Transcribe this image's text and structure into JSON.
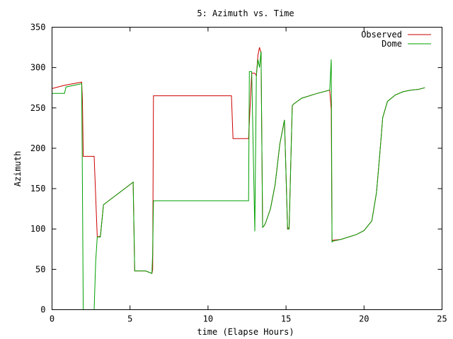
{
  "chart_data": {
    "type": "line",
    "title": "5: Azimuth vs. Time",
    "xlabel": "time (Elapse Hours)",
    "ylabel": "Azimuth",
    "xlim": [
      0,
      25
    ],
    "ylim": [
      0,
      350
    ],
    "xticks": [
      0,
      5,
      10,
      15,
      20,
      25
    ],
    "yticks": [
      0,
      50,
      100,
      150,
      200,
      250,
      300,
      350
    ],
    "grid": false,
    "legend_position": "top-right",
    "series": [
      {
        "name": "Observed",
        "color": "#cc0000",
        "x": [
          0,
          0.8,
          1.9,
          1.95,
          2.0,
          2.7,
          2.8,
          2.9,
          3.1,
          3.3,
          3.5,
          5.0,
          5.2,
          5.3,
          6.0,
          6.4,
          6.45,
          6.5,
          11.5,
          11.6,
          12.6,
          12.65,
          12.8,
          13.0,
          13.1,
          13.2,
          13.3,
          13.4,
          13.5,
          13.6,
          13.7,
          14.0,
          14.3,
          14.6,
          14.9,
          15.1,
          15.2,
          15.4,
          15.5,
          16.0,
          17.0,
          17.8,
          17.9,
          17.95,
          18.0,
          18.5,
          19.0,
          19.5,
          20.0,
          20.5,
          20.8,
          21.0,
          21.2,
          21.5,
          22.0,
          22.5,
          23.0,
          23.5,
          23.9
        ],
        "y": [
          274,
          278,
          282,
          258,
          190,
          190,
          140,
          90,
          91,
          130,
          133,
          155,
          158,
          48,
          48,
          45,
          50,
          265,
          265,
          212,
          212,
          232,
          293,
          293,
          290,
          315,
          325,
          318,
          102,
          104,
          108,
          125,
          155,
          205,
          235,
          100,
          102,
          253,
          255,
          262,
          268,
          272,
          248,
          84,
          86,
          87,
          90,
          93,
          98,
          110,
          145,
          190,
          238,
          258,
          266,
          270,
          272,
          273,
          275
        ]
      },
      {
        "name": "Dome",
        "color": "#00a000",
        "x": [
          0,
          0.8,
          0.9,
          1.9,
          1.95,
          2.0,
          2.7,
          2.8,
          2.9,
          3.1,
          3.3,
          3.5,
          5.0,
          5.2,
          5.3,
          6.0,
          6.4,
          6.45,
          6.5,
          12.6,
          12.65,
          12.8,
          13.0,
          13.1,
          13.2,
          13.3,
          13.4,
          13.5,
          13.6,
          13.7,
          14.0,
          14.3,
          14.6,
          14.9,
          15.1,
          15.2,
          15.4,
          15.5,
          16.0,
          17.0,
          17.8,
          17.9,
          17.95,
          18.0,
          18.5,
          19.0,
          19.5,
          20.0,
          20.5,
          20.8,
          21.0,
          21.2,
          21.5,
          22.0,
          22.5,
          23.0,
          23.5,
          23.9
        ],
        "y": [
          268,
          268,
          276,
          280,
          150,
          0,
          0,
          60,
          90,
          90,
          130,
          133,
          155,
          158,
          48,
          48,
          45,
          70,
          135,
          135,
          295,
          295,
          97,
          290,
          310,
          300,
          320,
          102,
          104,
          108,
          125,
          155,
          205,
          235,
          100,
          100,
          253,
          255,
          262,
          268,
          272,
          310,
          84,
          85,
          87,
          90,
          93,
          98,
          110,
          145,
          190,
          238,
          258,
          266,
          270,
          272,
          273,
          275
        ]
      }
    ]
  }
}
